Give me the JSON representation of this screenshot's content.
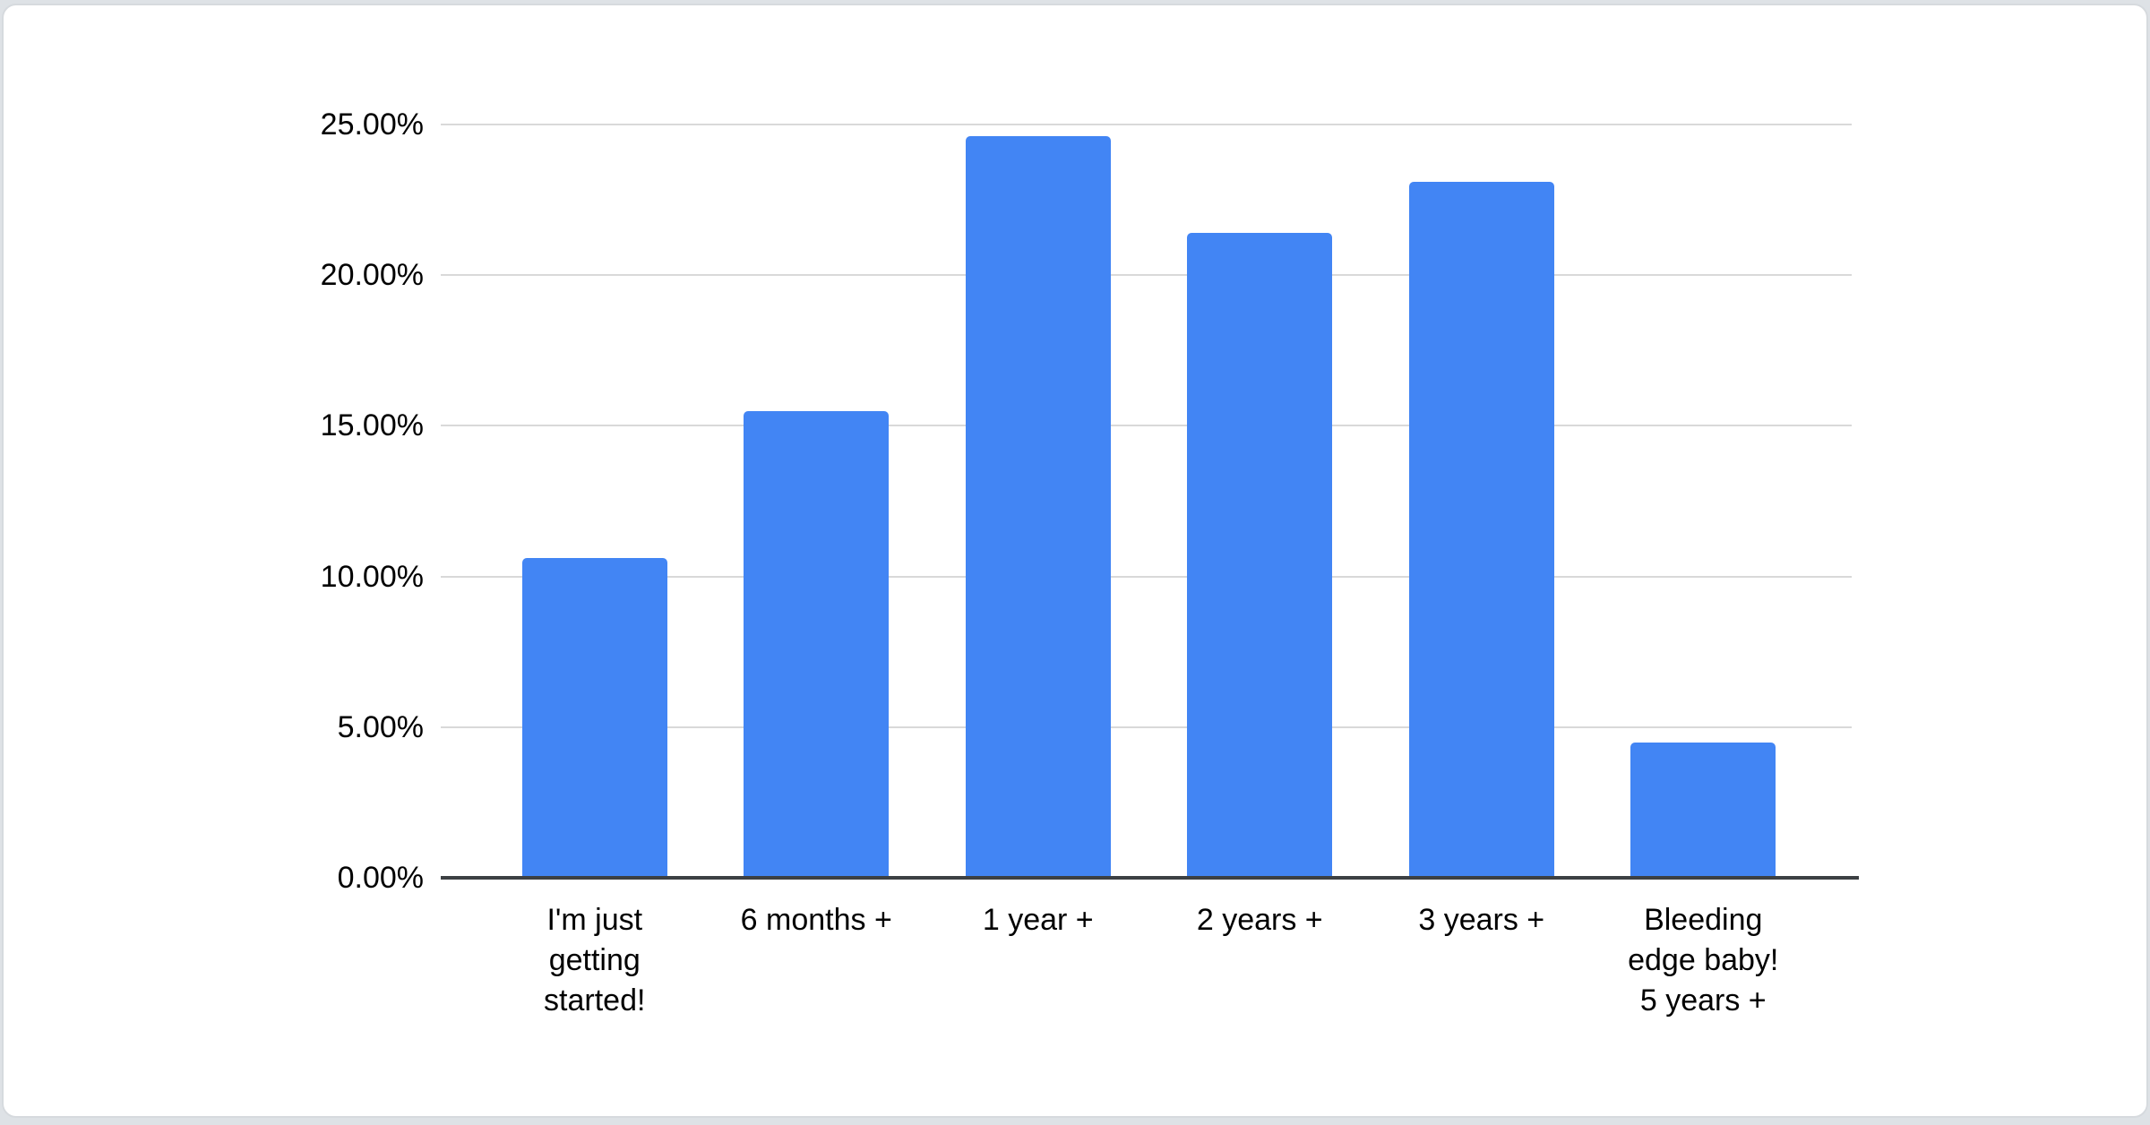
{
  "chart_data": {
    "type": "bar",
    "categories": [
      "I'm just\ngetting\nstarted!",
      "6 months +",
      "1 year +",
      "2 years +",
      "3 years +",
      "Bleeding\nedge baby!\n5 years +"
    ],
    "values": [
      10.6,
      15.5,
      24.6,
      21.4,
      23.1,
      4.5
    ],
    "title": "",
    "xlabel": "",
    "ylabel": "",
    "ylim": [
      0,
      25
    ],
    "y_tick_values": [
      0,
      5,
      10,
      15,
      20,
      25
    ],
    "y_tick_labels": [
      "0.00%",
      "5.00%",
      "10.00%",
      "15.00%",
      "20.00%",
      "25.00%"
    ],
    "grid": true,
    "legend_position": "none",
    "bar_color": "#4285f4",
    "gridline_color": "#d9d9d9",
    "axis_line_color": "#3c4043",
    "label_color": "#000000",
    "card_background": "#ffffff",
    "page_background": "#dee2e6"
  }
}
